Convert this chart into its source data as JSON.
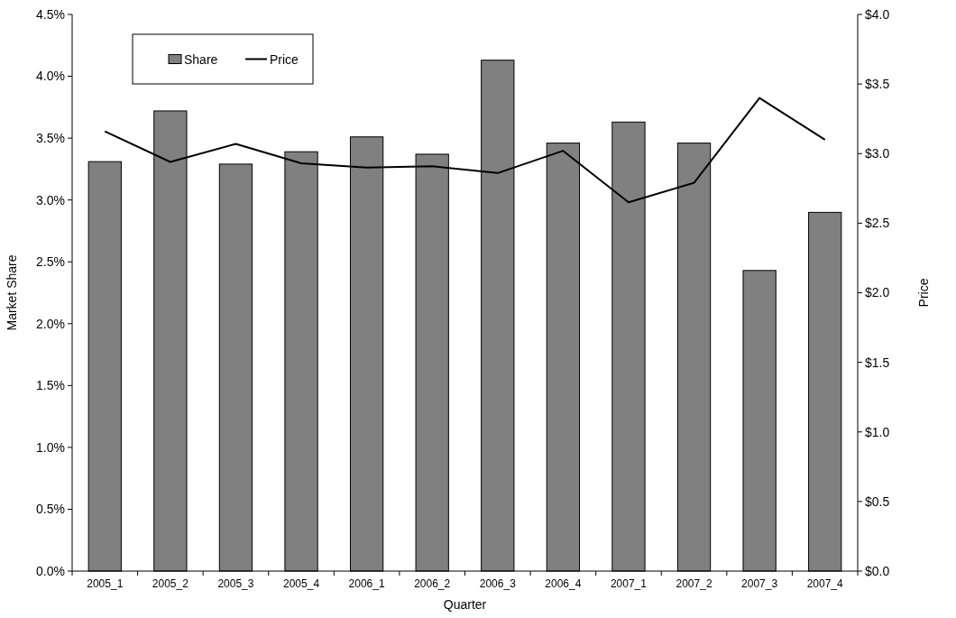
{
  "chart_data": {
    "type": "bar",
    "xlabel": "Quarter",
    "ylabel": "Market Share",
    "y2label": "Price",
    "categories": [
      "2005_1",
      "2005_2",
      "2005_3",
      "2005_4",
      "2006_1",
      "2006_2",
      "2006_3",
      "2006_4",
      "2007_1",
      "2007_2",
      "2007_3",
      "2007_4"
    ],
    "series": [
      {
        "name": "Share",
        "color": "#808080",
        "values": [
          3.31,
          3.72,
          3.29,
          3.39,
          3.51,
          3.37,
          4.13,
          3.46,
          3.63,
          3.46,
          2.43,
          2.9
        ]
      },
      {
        "name": "Price",
        "type": "line",
        "axis": "y2",
        "color": "#000000",
        "values": [
          3.16,
          2.94,
          3.07,
          2.93,
          2.9,
          2.91,
          2.86,
          3.02,
          2.65,
          2.79,
          3.4,
          3.1
        ]
      }
    ],
    "ylim": [
      0,
      4.5
    ],
    "yticks": [
      {
        "value": 0,
        "label": "0.0%"
      },
      {
        "value": 0.5,
        "label": "0.5%"
      },
      {
        "value": 1,
        "label": "1.0%"
      },
      {
        "value": 1.5,
        "label": "1.5%"
      },
      {
        "value": 2,
        "label": "2.0%"
      },
      {
        "value": 2.5,
        "label": "2.5%"
      },
      {
        "value": 3,
        "label": "3.0%"
      },
      {
        "value": 3.5,
        "label": "3.5%"
      },
      {
        "value": 4,
        "label": "4.0%"
      },
      {
        "value": 4.5,
        "label": "4.5%"
      }
    ],
    "y2lim": [
      0,
      4
    ],
    "y2ticks": [
      {
        "value": 0,
        "label": "$0.0"
      },
      {
        "value": 0.5,
        "label": "$0.5"
      },
      {
        "value": 1,
        "label": "$1.0"
      },
      {
        "value": 1.5,
        "label": "$1.5"
      },
      {
        "value": 2,
        "label": "$2.0"
      },
      {
        "value": 2.5,
        "label": "$2.5"
      },
      {
        "value": 3,
        "label": "$3.0"
      },
      {
        "value": 3.5,
        "label": "$3.5"
      },
      {
        "value": 4,
        "label": "$4.0"
      }
    ],
    "legend": "top left",
    "grid": false,
    "marker": "none",
    "line_style": "solid"
  }
}
